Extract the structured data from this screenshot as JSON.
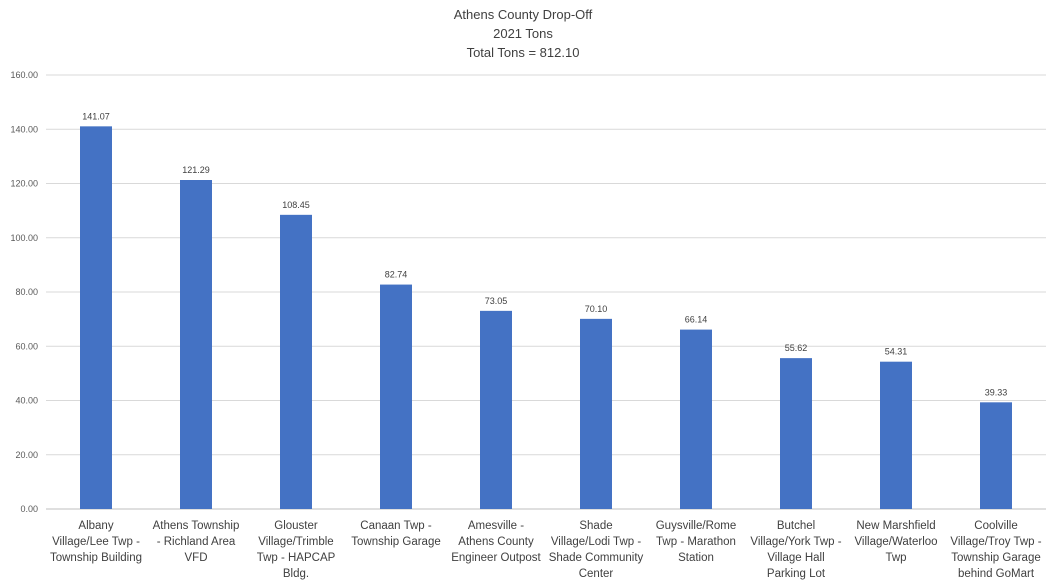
{
  "chart_data": {
    "type": "bar",
    "title": "Athens County Drop-Off",
    "subtitle": "2021 Tons",
    "total_line": "Total Tons = 812.10",
    "xlabel": "",
    "ylabel": "",
    "ylim": [
      0,
      160
    ],
    "y_ticks": [
      "0.00",
      "20.00",
      "40.00",
      "60.00",
      "80.00",
      "100.00",
      "120.00",
      "140.00",
      "160.00"
    ],
    "grid": true,
    "legend": "none",
    "bar_color": "#4472c4",
    "categories": [
      "Albany Village/Lee Twp - Township Building",
      "Athens Township - Richland Area VFD",
      "Glouster Village/Trimble Twp - HAPCAP Bldg.",
      "Canaan Twp - Township Garage",
      "Amesville - Athens County Engineer Outpost",
      "Shade Village/Lodi Twp - Shade Community Center",
      "Guysville/Rome Twp - Marathon Station",
      "Butchel Village/York Twp - Village Hall Parking Lot",
      "New Marshfield Village/Waterloo Twp",
      "Coolville Village/Troy Twp - Township Garage behind GoMart"
    ],
    "category_label_lines": [
      [
        "Albany",
        "Village/Lee Twp -",
        "Township Building"
      ],
      [
        "Athens Township",
        "- Richland Area",
        "VFD"
      ],
      [
        "Glouster",
        "Village/Trimble",
        "Twp - HAPCAP",
        "Bldg."
      ],
      [
        "Canaan Twp -",
        "Township Garage"
      ],
      [
        "Amesville -",
        "Athens County",
        "Engineer Outpost"
      ],
      [
        "Shade",
        "Village/Lodi Twp -",
        "Shade Community",
        "Center"
      ],
      [
        "Guysville/Rome",
        "Twp - Marathon",
        "Station"
      ],
      [
        "Butchel",
        "Village/York Twp -",
        "Village Hall",
        "Parking Lot"
      ],
      [
        "New Marshfield",
        "Village/Waterloo",
        "Twp"
      ],
      [
        "Coolville",
        "Village/Troy Twp -",
        "Township Garage",
        "behind GoMart"
      ]
    ],
    "values": [
      141.07,
      121.29,
      108.45,
      82.74,
      73.05,
      70.1,
      66.14,
      55.62,
      54.31,
      39.33
    ],
    "value_labels": [
      "141.07",
      "121.29",
      "108.45",
      "82.74",
      "73.05",
      "70.10",
      "66.14",
      "55.62",
      "54.31",
      "39.33"
    ]
  }
}
